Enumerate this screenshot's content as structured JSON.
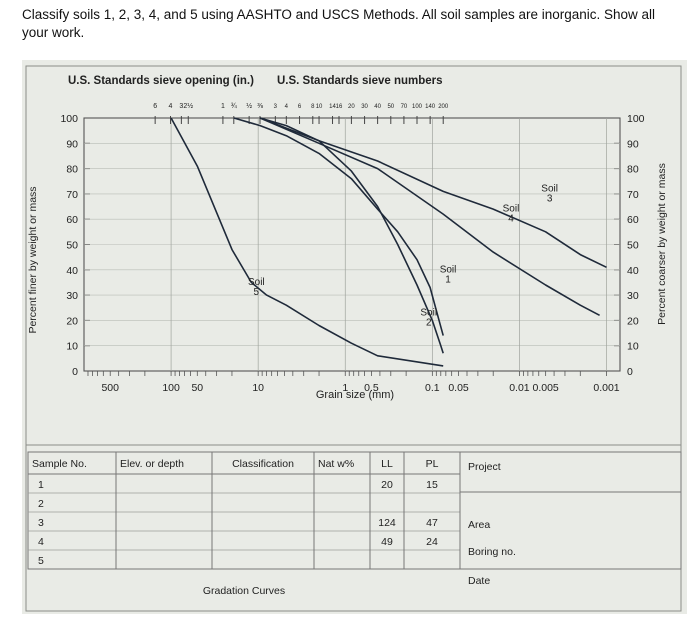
{
  "question": "Classify soils 1, 2, 3, 4, and 5 using AASHTO and USCS Methods. All soil samples are inorganic. Show all your work.",
  "chart_data": {
    "type": "line",
    "header_left": "U.S. Standards sieve opening (in.)",
    "header_right": "U.S. Standards sieve numbers",
    "sieve_openings_in": [
      "6",
      "4",
      "3",
      "2½",
      "1",
      "¾",
      "½",
      "⅜"
    ],
    "sieve_numbers": [
      "3",
      "4",
      "6",
      "8",
      "10",
      "14",
      "16",
      "20",
      "30",
      "40",
      "50",
      "70",
      "100",
      "140",
      "200"
    ],
    "xlabel": "Grain size (mm)",
    "xscale": "log",
    "xlim": [
      1000,
      0.0007
    ],
    "x_ticks": [
      {
        "v": 500,
        "label": "500"
      },
      {
        "v": 100,
        "label": "100"
      },
      {
        "v": 50,
        "label": "50"
      },
      {
        "v": 10,
        "label": "10"
      },
      {
        "v": 1,
        "label": "1"
      },
      {
        "v": 0.5,
        "label": "0.5"
      },
      {
        "v": 0.1,
        "label": "0.1"
      },
      {
        "v": 0.05,
        "label": "0.05"
      },
      {
        "v": 0.01,
        "label": "0.01"
      },
      {
        "v": 0.005,
        "label": "0.005"
      },
      {
        "v": 0.001,
        "label": "0.001"
      }
    ],
    "ylabel_left": "Percent finer by weight or mass",
    "ylabel_right": "Percent coarser by weight or mass",
    "ylim": [
      0,
      100
    ],
    "y_ticks_left": [
      "0",
      "10",
      "20",
      "30",
      "40",
      "50",
      "60",
      "70",
      "80",
      "90",
      "100"
    ],
    "y_ticks_right": [
      "100",
      "90",
      "80",
      "70",
      "60",
      "50",
      "40",
      "30",
      "20",
      "10",
      "0"
    ],
    "series": [
      {
        "name": "Soil 1",
        "label": [
          "Soil",
          "1"
        ],
        "label_at": [
          0.066,
          39
        ],
        "points": [
          [
            19,
            100
          ],
          [
            9.5,
            97
          ],
          [
            4.75,
            93
          ],
          [
            2.0,
            86
          ],
          [
            0.85,
            76
          ],
          [
            0.425,
            64
          ],
          [
            0.25,
            55
          ],
          [
            0.15,
            44
          ],
          [
            0.106,
            33
          ],
          [
            0.09,
            24
          ],
          [
            0.075,
            14
          ]
        ]
      },
      {
        "name": "Soil 2",
        "label": [
          "Soil",
          "2"
        ],
        "label_at": [
          0.11,
          22
        ],
        "points": [
          [
            9.5,
            100
          ],
          [
            4.75,
            97
          ],
          [
            2.0,
            91
          ],
          [
            0.85,
            79
          ],
          [
            0.425,
            65
          ],
          [
            0.25,
            50
          ],
          [
            0.15,
            34
          ],
          [
            0.1,
            20
          ],
          [
            0.08,
            10
          ],
          [
            0.075,
            7
          ]
        ]
      },
      {
        "name": "Soil 3",
        "label": [
          "Soil",
          "3"
        ],
        "label_at": [
          0.0045,
          71
        ],
        "points": [
          [
            9.5,
            100
          ],
          [
            2.0,
            91
          ],
          [
            0.425,
            83
          ],
          [
            0.075,
            71
          ],
          [
            0.02,
            64
          ],
          [
            0.005,
            55
          ],
          [
            0.002,
            46
          ],
          [
            0.001,
            41
          ]
        ]
      },
      {
        "name": "Soil 4",
        "label": [
          "Soil",
          "4"
        ],
        "label_at": [
          0.0125,
          63
        ],
        "points": [
          [
            9.5,
            100
          ],
          [
            2.0,
            90
          ],
          [
            0.425,
            80
          ],
          [
            0.075,
            62
          ],
          [
            0.02,
            47
          ],
          [
            0.005,
            34
          ],
          [
            0.002,
            26
          ],
          [
            0.0012,
            22
          ]
        ]
      },
      {
        "name": "Soil 5",
        "label": [
          "Soil",
          "5"
        ],
        "label_at": [
          10.5,
          34
        ],
        "points": [
          [
            100,
            100
          ],
          [
            50,
            81
          ],
          [
            20,
            48
          ],
          [
            12,
            35
          ],
          [
            8,
            30
          ],
          [
            4.75,
            26
          ],
          [
            2.0,
            18
          ],
          [
            0.85,
            11
          ],
          [
            0.425,
            6
          ],
          [
            0.075,
            2
          ]
        ]
      }
    ],
    "grid": "partial"
  },
  "table": {
    "headers": {
      "sample": "Sample No.",
      "elev": "Elev. or depth",
      "class": "Classification",
      "natw": "Nat w%",
      "ll": "LL",
      "pl": "PL"
    },
    "rows": [
      {
        "sample": "1",
        "ll": "20",
        "pl": "15"
      },
      {
        "sample": "2",
        "ll": "",
        "pl": ""
      },
      {
        "sample": "3",
        "ll": "124",
        "pl": "47"
      },
      {
        "sample": "4",
        "ll": "49",
        "pl": "24"
      },
      {
        "sample": "5",
        "ll": "",
        "pl": ""
      }
    ],
    "project_label": "Project",
    "area_label": "Area",
    "boring_label": "Boring no.",
    "date_label": "Date",
    "footer": "Gradation Curves"
  }
}
